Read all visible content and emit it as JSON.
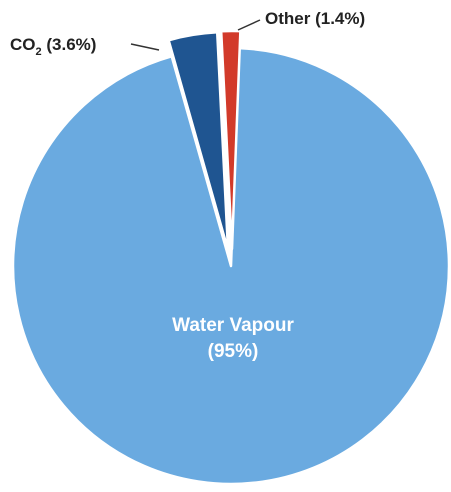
{
  "chart_data": {
    "type": "pie",
    "title": "",
    "slices": [
      {
        "label": "Water Vapour",
        "value": 95,
        "display": "(95%)",
        "color": "#6aaae0"
      },
      {
        "label": "CO",
        "subscript": "2",
        "value": 3.6,
        "display": "(3.6%)",
        "color": "#1f5591"
      },
      {
        "label": "Other",
        "value": 1.4,
        "display": "(1.4%)",
        "color": "#d23a2a"
      }
    ]
  }
}
